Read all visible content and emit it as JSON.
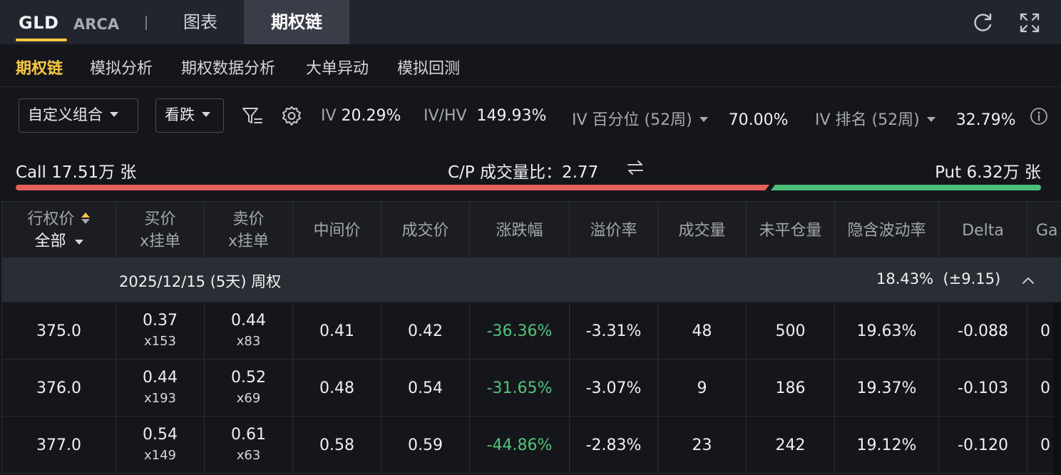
{
  "topbar": {
    "ticker": "GLD",
    "exchange": "ARCA",
    "tabs": [
      {
        "label": "图表",
        "active": false
      },
      {
        "label": "期权链",
        "active": true
      }
    ],
    "icons": [
      "refresh-icon",
      "fullscreen-icon"
    ]
  },
  "subtabs": [
    {
      "label": "期权链",
      "active": true
    },
    {
      "label": "模拟分析",
      "active": false
    },
    {
      "label": "期权数据分析",
      "active": false
    },
    {
      "label": "大单异动",
      "active": false
    },
    {
      "label": "模拟回测",
      "active": false
    }
  ],
  "filters": {
    "strategy_select": "自定义组合",
    "direction_select": "看跌",
    "iv_label": "IV",
    "iv_value": "20.29%",
    "ivhv_label": "IV/HV",
    "ivhv_value": "149.93%",
    "iv_pct_label": "IV 百分位 (52周)",
    "iv_pct_value": "70.00%",
    "iv_rank_label": "IV 排名 (52周)",
    "iv_rank_value": "32.79%"
  },
  "volume": {
    "call_text": "Call 17.51万 张",
    "cp_ratio_text": "C/P 成交量比：2.77",
    "put_text": "Put 6.32万 张",
    "call_share": 0.735
  },
  "table": {
    "headers": {
      "strike": "行权价",
      "strike_filter": "全部",
      "bid": "买价",
      "bid_sub": "x挂单",
      "ask": "卖价",
      "ask_sub": "x挂单",
      "mid": "中间价",
      "last": "成交价",
      "change": "涨跌幅",
      "premium": "溢价率",
      "volume": "成交量",
      "oi": "未平仓量",
      "iv": "隐含波动率",
      "delta": "Delta",
      "gamma": "Ga"
    },
    "expiry": {
      "label": "2025/12/15 (5天) 周权",
      "iv": "18.43%",
      "move": "(±9.15)"
    },
    "rows": [
      {
        "strike": "375.0",
        "bid": "0.37",
        "bid_size": "x153",
        "ask": "0.44",
        "ask_size": "x83",
        "mid": "0.41",
        "last": "0.42",
        "change": "-36.36%",
        "premium": "-3.31%",
        "volume": "48",
        "oi": "500",
        "iv": "19.63%",
        "delta": "-0.088",
        "gamma": "0"
      },
      {
        "strike": "376.0",
        "bid": "0.44",
        "bid_size": "x193",
        "ask": "0.52",
        "ask_size": "x69",
        "mid": "0.48",
        "last": "0.54",
        "change": "-31.65%",
        "premium": "-3.07%",
        "volume": "9",
        "oi": "186",
        "iv": "19.37%",
        "delta": "-0.103",
        "gamma": "0"
      },
      {
        "strike": "377.0",
        "bid": "0.54",
        "bid_size": "x149",
        "ask": "0.61",
        "ask_size": "x63",
        "mid": "0.58",
        "last": "0.59",
        "change": "-44.86%",
        "premium": "-2.83%",
        "volume": "23",
        "oi": "242",
        "iv": "19.12%",
        "delta": "-0.120",
        "gamma": "0"
      }
    ]
  },
  "colors": {
    "accent": "#f5c842",
    "call_bar": "#e3625a",
    "put_bar": "#4cc07a",
    "negative_change": "#52c27a"
  }
}
